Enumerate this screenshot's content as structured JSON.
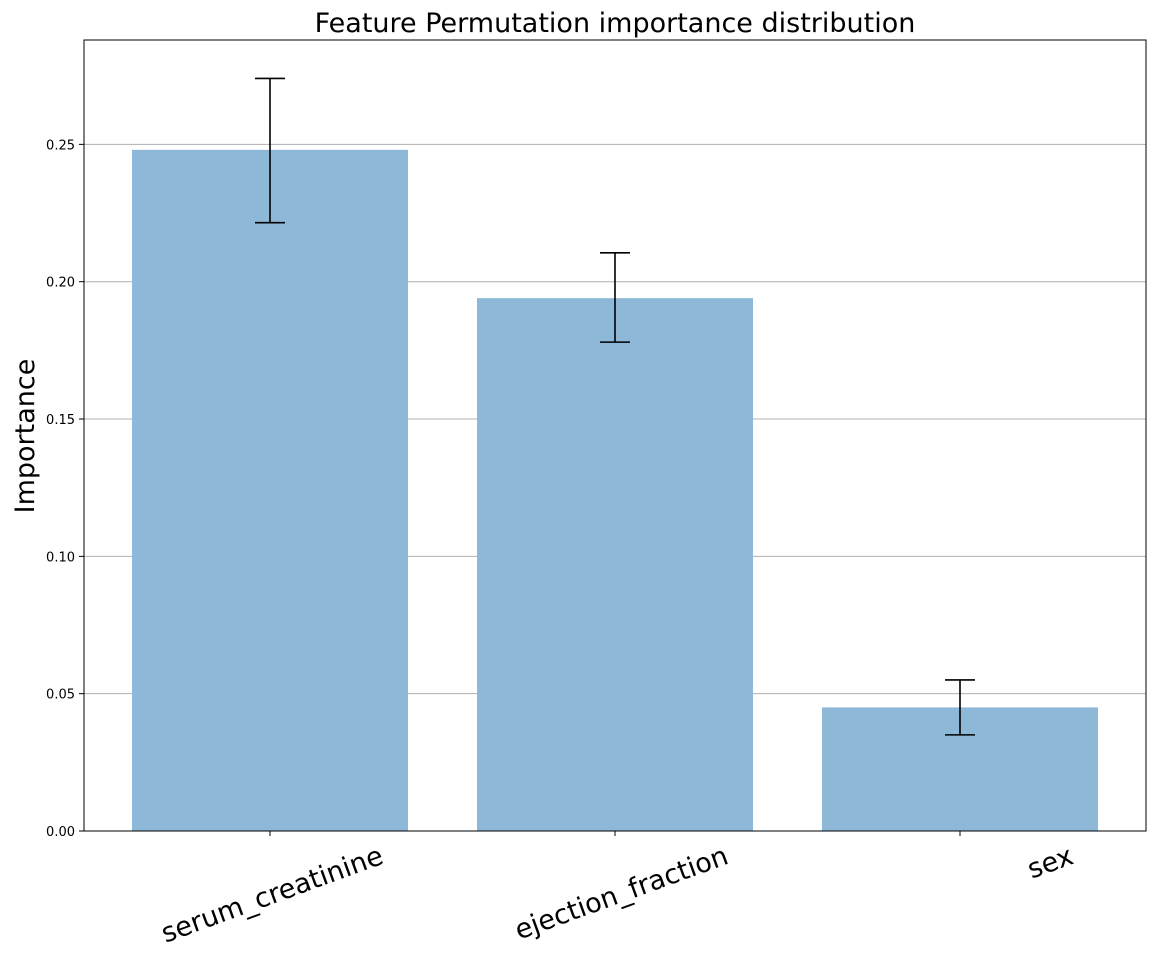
{
  "chart_data": {
    "type": "bar",
    "title": "Feature Permutation importance distribution",
    "xlabel": "",
    "ylabel": "Importance",
    "categories": [
      "serum_creatinine",
      "ejection_fraction",
      "sex"
    ],
    "values": [
      0.248,
      0.194,
      0.045
    ],
    "error_low": [
      0.2215,
      0.178,
      0.035
    ],
    "error_high": [
      0.274,
      0.2105,
      0.055
    ],
    "ylim": [
      0,
      0.288
    ],
    "yticks": [
      0.0,
      0.05,
      0.1,
      0.15,
      0.2,
      0.25
    ],
    "ytick_labels": [
      "0.00",
      "0.05",
      "0.10",
      "0.15",
      "0.20",
      "0.25"
    ],
    "grid": "horizontal",
    "xtick_rotation": -20,
    "bar_color": "#8db8d8",
    "error_color": "#000000",
    "grid_color": "#b0b0b0"
  }
}
